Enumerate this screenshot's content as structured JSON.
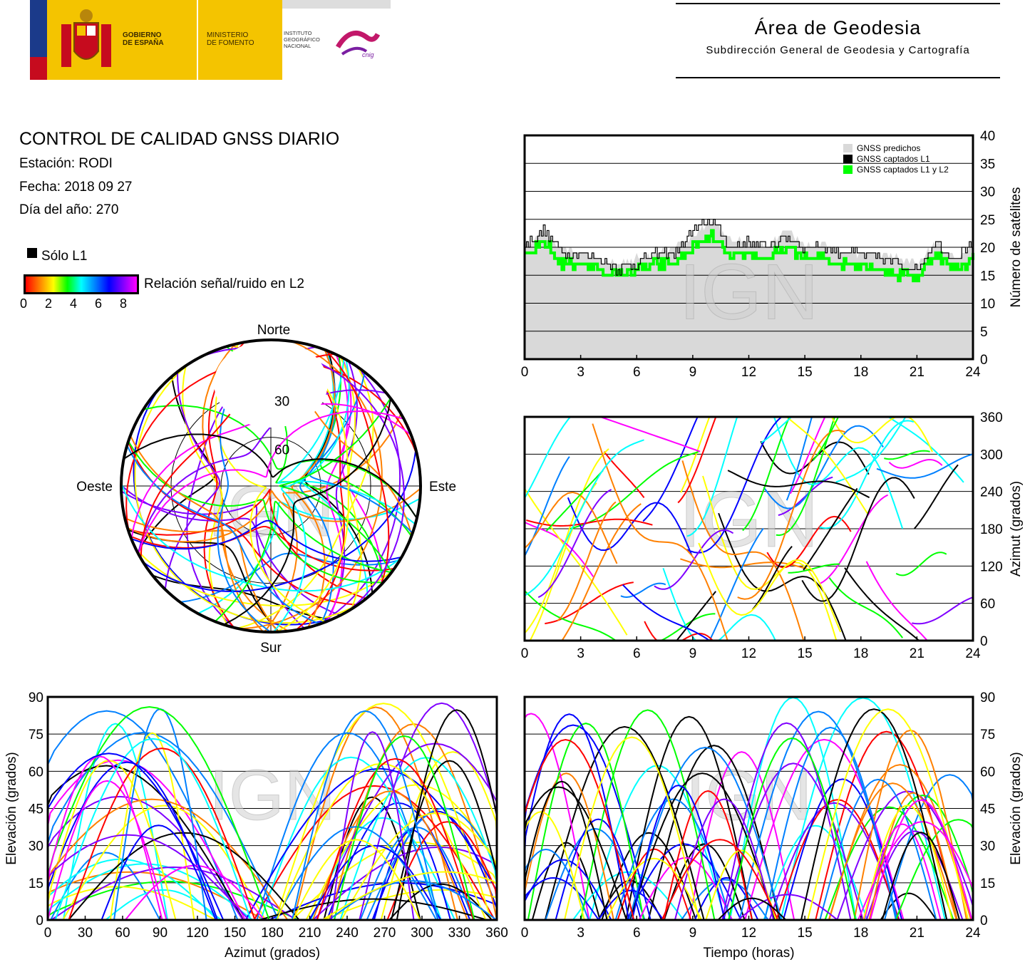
{
  "header": {
    "gobierno": "GOBIERNO\nDE ESPAÑA",
    "ministerio": "MINISTERIO\nDE FOMENTO",
    "instituto": "INSTITUTO\nGEOGRÁFICO\nNACIONAL",
    "cnig": "cnig",
    "area_title": "Área de Geodesia",
    "area_subtitle": "Subdirección General de Geodesia y Cartografía"
  },
  "info": {
    "title": "CONTROL DE CALIDAD GNSS DIARIO",
    "station": "Estación: RODI",
    "date": "Fecha: 2018 09 27",
    "doy": "Día del año: 270"
  },
  "legend": {
    "solo_l1": "Sólo L1",
    "snr_label": "Relación señal/ruido en L2",
    "snr_ticks": [
      "0",
      "2",
      "4",
      "6",
      "8"
    ],
    "palette": [
      "#ff0000",
      "#ff8000",
      "#ffff00",
      "#00ff00",
      "#00ffff",
      "#0080ff",
      "#0000ff",
      "#8000ff",
      "#ff00ff"
    ]
  },
  "watermark": "IGN",
  "colors": {
    "predicted": "#d9d9d9",
    "l1": "#000000",
    "l1l2": "#00ff00"
  },
  "chart_data": [
    {
      "id": "satellite_count",
      "type": "area",
      "ylabel": "Número de satélites",
      "x_ticks": [
        "0",
        "3",
        "6",
        "9",
        "12",
        "15",
        "18",
        "21",
        "24"
      ],
      "y_ticks": [
        "0",
        "5",
        "10",
        "15",
        "20",
        "25",
        "30",
        "35",
        "40"
      ],
      "xlim": [
        0,
        24
      ],
      "ylim": [
        0,
        40
      ],
      "legend_position": "top-right",
      "series": [
        {
          "name": "GNSS predichos",
          "color": "#d9d9d9",
          "x": [
            0,
            1,
            2,
            3,
            4,
            5,
            6,
            7,
            8,
            9,
            10,
            11,
            12,
            13,
            14,
            15,
            16,
            17,
            18,
            19,
            20,
            21,
            22,
            23,
            24
          ],
          "values": [
            20,
            23,
            20,
            19,
            18,
            17,
            18,
            19,
            20,
            22,
            25,
            21,
            21,
            20,
            23,
            20,
            21,
            19,
            19,
            19,
            18,
            17,
            21,
            18,
            20
          ]
        },
        {
          "name": "GNSS captados L1",
          "color": "#000000",
          "x": [
            0,
            1,
            2,
            3,
            4,
            5,
            6,
            7,
            8,
            9,
            10,
            11,
            12,
            13,
            14,
            15,
            16,
            17,
            18,
            19,
            20,
            21,
            22,
            23,
            24
          ],
          "values": [
            20,
            23,
            19,
            19,
            18,
            16,
            17,
            19,
            19,
            23,
            25,
            20,
            21,
            20,
            22,
            20,
            20,
            19,
            19,
            18,
            17,
            16,
            21,
            18,
            21
          ]
        },
        {
          "name": "GNSS captados L1 y L2",
          "color": "#00ff00",
          "x": [
            0,
            1,
            2,
            3,
            4,
            5,
            6,
            7,
            8,
            9,
            10,
            11,
            12,
            13,
            14,
            15,
            16,
            17,
            18,
            19,
            20,
            21,
            22,
            23,
            24
          ],
          "values": [
            18,
            21,
            17,
            17,
            16,
            15,
            16,
            17,
            17,
            20,
            22,
            18,
            19,
            18,
            20,
            18,
            18,
            17,
            17,
            16,
            15,
            15,
            19,
            16,
            18
          ]
        }
      ]
    },
    {
      "id": "skyplot",
      "type": "scatter",
      "labels": {
        "north": "Norte",
        "south": "Sur",
        "west": "Oeste",
        "east": "Este"
      },
      "rings": [
        "30",
        "60"
      ]
    },
    {
      "id": "azimuth_time",
      "type": "scatter",
      "ylabel": "Azimut (grados)",
      "x_ticks": [
        "0",
        "3",
        "6",
        "9",
        "12",
        "15",
        "18",
        "21",
        "24"
      ],
      "y_ticks": [
        "0",
        "60",
        "120",
        "180",
        "240",
        "300",
        "360"
      ],
      "xlim": [
        0,
        24
      ],
      "ylim": [
        0,
        360
      ]
    },
    {
      "id": "elevation_azimuth",
      "type": "scatter",
      "xlabel": "Azimut (grados)",
      "ylabel": "Elevación (grados)",
      "x_ticks": [
        "0",
        "30",
        "60",
        "90",
        "120",
        "150",
        "180",
        "210",
        "240",
        "270",
        "300",
        "330",
        "360"
      ],
      "y_ticks": [
        "0",
        "15",
        "30",
        "45",
        "60",
        "75",
        "90"
      ],
      "xlim": [
        0,
        360
      ],
      "ylim": [
        0,
        90
      ]
    },
    {
      "id": "elevation_time",
      "type": "scatter",
      "xlabel": "Tiempo (horas)",
      "ylabel": "Elevación (grados)",
      "x_ticks": [
        "0",
        "3",
        "6",
        "9",
        "12",
        "15",
        "18",
        "21",
        "24"
      ],
      "y_ticks": [
        "0",
        "15",
        "30",
        "45",
        "60",
        "75",
        "90"
      ],
      "xlim": [
        0,
        24
      ],
      "ylim": [
        0,
        90
      ]
    }
  ]
}
